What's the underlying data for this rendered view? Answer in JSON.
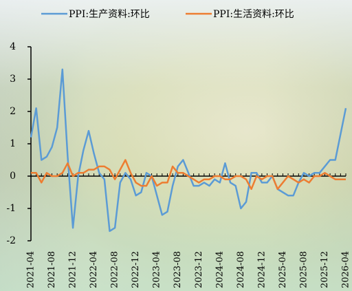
{
  "chart_data": {
    "type": "line",
    "categories": [
      "2021-04",
      null,
      null,
      null,
      "2021-08",
      null,
      null,
      null,
      "2021-12",
      null,
      null,
      null,
      "2022-04",
      null,
      null,
      null,
      "2022-08",
      null,
      null,
      null,
      "2022-12",
      null,
      null,
      null,
      "2023-04",
      null,
      null,
      null,
      "2023-08",
      null,
      null,
      null,
      "2023-12",
      null,
      null,
      null,
      "2024-04",
      null,
      null,
      null,
      "2024-08",
      null,
      null,
      null,
      "2024-12",
      null,
      null,
      null,
      "2025-04",
      null,
      null,
      null,
      "2025-08",
      null,
      null,
      null,
      "2025-12",
      null,
      null,
      null,
      "2026-04"
    ],
    "series": [
      {
        "name": "PPI:生产资料:环比",
        "color": "#5b9bd5",
        "values": [
          1.2,
          2.1,
          0.5,
          0.6,
          0.9,
          1.5,
          3.3,
          0.6,
          -1.6,
          0.0,
          0.8,
          1.4,
          0.7,
          0.1,
          -0.1,
          -1.7,
          -1.6,
          -0.2,
          0.1,
          -0.1,
          -0.6,
          -0.5,
          0.1,
          0.0,
          -0.6,
          -1.2,
          -1.1,
          -0.3,
          0.3,
          0.5,
          0.1,
          -0.3,
          -0.3,
          -0.2,
          -0.3,
          -0.1,
          -0.2,
          0.4,
          -0.2,
          -0.3,
          -1.0,
          -0.8,
          0.1,
          0.1,
          -0.2,
          -0.2,
          0.0,
          -0.4,
          -0.5,
          -0.6,
          -0.6,
          -0.2,
          0.1,
          0.0,
          0.1,
          0.1,
          0.3,
          0.5,
          0.5,
          1.3,
          2.1
        ]
      },
      {
        "name": "PPI:生活资料:环比",
        "color": "#ed7d31",
        "values": [
          0.1,
          0.1,
          -0.2,
          0.1,
          0.0,
          0.0,
          0.1,
          0.4,
          0.0,
          0.1,
          0.1,
          0.2,
          0.2,
          0.3,
          0.3,
          0.2,
          -0.1,
          0.2,
          0.5,
          0.1,
          -0.2,
          -0.3,
          -0.3,
          0.0,
          -0.3,
          -0.2,
          -0.2,
          0.3,
          0.1,
          0.1,
          0.0,
          -0.1,
          -0.2,
          -0.1,
          -0.1,
          0.0,
          0.0,
          -0.1,
          -0.1,
          0.0,
          0.0,
          -0.1,
          -0.4,
          0.0,
          -0.1,
          0.0,
          0.0,
          -0.4,
          -0.2,
          0.0,
          -0.1,
          -0.2,
          -0.1,
          -0.2,
          0.0,
          0.0,
          0.1,
          0.0,
          -0.1,
          -0.1,
          -0.1
        ]
      }
    ],
    "ylim": [
      -2,
      4
    ],
    "yticks": [
      -2,
      -1,
      0,
      1,
      2,
      3,
      4
    ],
    "legend": "top"
  }
}
